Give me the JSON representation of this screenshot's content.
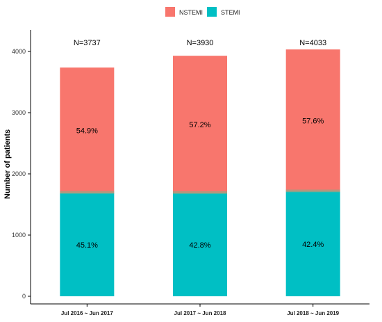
{
  "chart_data": {
    "type": "bar",
    "stacked": true,
    "categories": [
      "Jul 2016 ~ Jun 2017",
      "Jul 2017 ~ Jun 2018",
      "Jul 2018 ~ Jun 2019"
    ],
    "series": [
      {
        "name": "STEMI",
        "values": [
          1685,
          1682,
          1710
        ],
        "percent_labels": [
          "45.1%",
          "42.8%",
          "42.4%"
        ],
        "color": "#00BFC4"
      },
      {
        "name": "NSTEMI",
        "values": [
          2052,
          2248,
          2323
        ],
        "percent_labels": [
          "54.9%",
          "57.2%",
          "57.6%"
        ],
        "color": "#F8766D"
      }
    ],
    "totals": [
      3737,
      3930,
      4033
    ],
    "total_labels": [
      "N=3737",
      "N=3930",
      "N=4033"
    ],
    "ylabel": "Number of patients",
    "xlabel": "",
    "ylim": [
      0,
      4000
    ],
    "yticks": [
      "0",
      "1000",
      "2000",
      "3000",
      "4000"
    ],
    "ytick_values": [
      0,
      1000,
      2000,
      3000,
      4000
    ],
    "legend": {
      "position": "top",
      "entries": [
        "NSTEMI",
        "STEMI"
      ]
    },
    "grid": false
  }
}
